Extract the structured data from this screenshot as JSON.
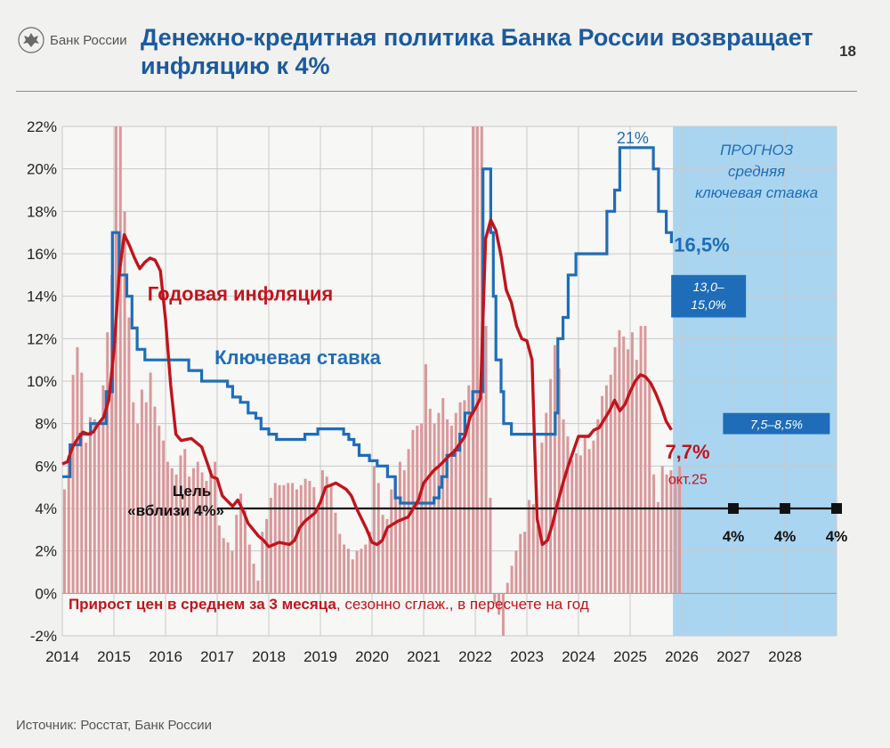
{
  "header": {
    "logo_text": "Банк России",
    "title": "Денежно-кредитная политика Банка России возвращает инфляцию к 4%",
    "page_number": "18"
  },
  "footer": {
    "source": "Источник: Росстат, Банк России"
  },
  "colors": {
    "inflation": "#c0141c",
    "key_rate": "#1f6db8",
    "bars": "#d9989a",
    "forecast_bg": "#a9d5f0",
    "forecast_box": "#1f6db8",
    "target": "#111111"
  },
  "chart_data": {
    "type": "line",
    "ylim": [
      -2,
      22
    ],
    "xlim": [
      2014,
      2029
    ],
    "y_ticks": [
      "-2%",
      "0%",
      "2%",
      "4%",
      "6%",
      "8%",
      "10%",
      "12%",
      "14%",
      "16%",
      "18%",
      "20%",
      "22%"
    ],
    "x_ticks": [
      "2014",
      "2015",
      "2016",
      "2017",
      "2018",
      "2019",
      "2020",
      "2021",
      "2022",
      "2023",
      "2024",
      "2025",
      "2026",
      "2027",
      "2028"
    ],
    "grid": true,
    "forecast": {
      "label_lines": [
        "ПРОГНОЗ",
        "средняя",
        "ключевая ставка"
      ],
      "start": 2025.83,
      "end": 2029,
      "ranges": [
        {
          "lines": [
            "13,0–",
            "15,0%"
          ],
          "low": 13.0,
          "high": 15.0,
          "year": 2026
        },
        {
          "lines": [
            "7,5–8,5%"
          ],
          "low": 7.5,
          "high": 8.5,
          "year": 2027
        }
      ]
    },
    "target": {
      "label_lines": [
        "Цель",
        "«вблизи 4%»"
      ],
      "value": 4,
      "points": [
        {
          "x": 2027,
          "label": "4%"
        },
        {
          "x": 2028,
          "label": "4%"
        },
        {
          "x": 2029,
          "label": "4%"
        }
      ]
    },
    "series": [
      {
        "name": "Годовая инфляция",
        "end_label": "7,7%",
        "end_sublabel": "окт.25",
        "points": [
          [
            2014.0,
            6.1
          ],
          [
            2014.1,
            6.2
          ],
          [
            2014.2,
            6.9
          ],
          [
            2014.3,
            7.3
          ],
          [
            2014.4,
            7.6
          ],
          [
            2014.5,
            7.5
          ],
          [
            2014.6,
            7.6
          ],
          [
            2014.7,
            8.0
          ],
          [
            2014.8,
            8.3
          ],
          [
            2014.9,
            9.1
          ],
          [
            2015.0,
            11.4
          ],
          [
            2015.1,
            15.0
          ],
          [
            2015.2,
            16.9
          ],
          [
            2015.3,
            16.4
          ],
          [
            2015.4,
            15.8
          ],
          [
            2015.5,
            15.3
          ],
          [
            2015.6,
            15.6
          ],
          [
            2015.7,
            15.8
          ],
          [
            2015.8,
            15.7
          ],
          [
            2015.9,
            15.2
          ],
          [
            2016.0,
            12.9
          ],
          [
            2016.1,
            9.8
          ],
          [
            2016.2,
            7.5
          ],
          [
            2016.3,
            7.2
          ],
          [
            2016.5,
            7.3
          ],
          [
            2016.7,
            6.9
          ],
          [
            2016.8,
            6.2
          ],
          [
            2016.9,
            5.5
          ],
          [
            2017.0,
            5.4
          ],
          [
            2017.1,
            4.6
          ],
          [
            2017.3,
            4.1
          ],
          [
            2017.4,
            4.4
          ],
          [
            2017.5,
            3.9
          ],
          [
            2017.6,
            3.3
          ],
          [
            2017.7,
            3.0
          ],
          [
            2017.8,
            2.7
          ],
          [
            2017.9,
            2.5
          ],
          [
            2018.0,
            2.2
          ],
          [
            2018.2,
            2.4
          ],
          [
            2018.4,
            2.3
          ],
          [
            2018.5,
            2.5
          ],
          [
            2018.6,
            3.1
          ],
          [
            2018.7,
            3.4
          ],
          [
            2018.9,
            3.8
          ],
          [
            2019.0,
            4.3
          ],
          [
            2019.1,
            5.0
          ],
          [
            2019.3,
            5.2
          ],
          [
            2019.5,
            4.9
          ],
          [
            2019.6,
            4.6
          ],
          [
            2019.7,
            4.0
          ],
          [
            2019.8,
            3.5
          ],
          [
            2019.9,
            3.0
          ],
          [
            2020.0,
            2.4
          ],
          [
            2020.1,
            2.3
          ],
          [
            2020.2,
            2.5
          ],
          [
            2020.3,
            3.1
          ],
          [
            2020.5,
            3.4
          ],
          [
            2020.7,
            3.6
          ],
          [
            2020.9,
            4.4
          ],
          [
            2021.0,
            5.2
          ],
          [
            2021.2,
            5.8
          ],
          [
            2021.3,
            6.0
          ],
          [
            2021.5,
            6.5
          ],
          [
            2021.6,
            6.7
          ],
          [
            2021.8,
            7.4
          ],
          [
            2021.9,
            8.3
          ],
          [
            2022.0,
            8.7
          ],
          [
            2022.1,
            9.2
          ],
          [
            2022.2,
            16.7
          ],
          [
            2022.3,
            17.6
          ],
          [
            2022.4,
            17.1
          ],
          [
            2022.5,
            15.9
          ],
          [
            2022.6,
            14.3
          ],
          [
            2022.7,
            13.7
          ],
          [
            2022.8,
            12.6
          ],
          [
            2022.9,
            12.0
          ],
          [
            2023.0,
            11.9
          ],
          [
            2023.1,
            11.0
          ],
          [
            2023.15,
            7.0
          ],
          [
            2023.2,
            3.5
          ],
          [
            2023.3,
            2.3
          ],
          [
            2023.4,
            2.5
          ],
          [
            2023.5,
            3.3
          ],
          [
            2023.6,
            4.3
          ],
          [
            2023.7,
            5.2
          ],
          [
            2023.8,
            6.0
          ],
          [
            2023.9,
            6.7
          ],
          [
            2024.0,
            7.4
          ],
          [
            2024.1,
            7.4
          ],
          [
            2024.2,
            7.4
          ],
          [
            2024.3,
            7.7
          ],
          [
            2024.4,
            7.8
          ],
          [
            2024.5,
            8.2
          ],
          [
            2024.6,
            8.6
          ],
          [
            2024.7,
            9.1
          ],
          [
            2024.8,
            8.6
          ],
          [
            2024.9,
            8.9
          ],
          [
            2025.0,
            9.5
          ],
          [
            2025.1,
            10.0
          ],
          [
            2025.2,
            10.3
          ],
          [
            2025.3,
            10.2
          ],
          [
            2025.4,
            9.9
          ],
          [
            2025.5,
            9.4
          ],
          [
            2025.6,
            8.8
          ],
          [
            2025.7,
            8.1
          ],
          [
            2025.8,
            7.7
          ]
        ]
      },
      {
        "name": "Ключевая ставка",
        "end_label": "16,5%",
        "label_top": "21%",
        "points": [
          [
            2014.0,
            5.5
          ],
          [
            2014.15,
            7.0
          ],
          [
            2014.35,
            7.5
          ],
          [
            2014.55,
            8.0
          ],
          [
            2014.85,
            9.5
          ],
          [
            2014.97,
            17.0
          ],
          [
            2015.1,
            15.0
          ],
          [
            2015.25,
            14.0
          ],
          [
            2015.35,
            12.5
          ],
          [
            2015.45,
            11.5
          ],
          [
            2015.6,
            11.0
          ],
          [
            2016.45,
            10.5
          ],
          [
            2016.7,
            10.0
          ],
          [
            2017.2,
            9.75
          ],
          [
            2017.3,
            9.25
          ],
          [
            2017.45,
            9.0
          ],
          [
            2017.6,
            8.5
          ],
          [
            2017.75,
            8.25
          ],
          [
            2017.85,
            7.75
          ],
          [
            2018.0,
            7.5
          ],
          [
            2018.15,
            7.25
          ],
          [
            2018.7,
            7.5
          ],
          [
            2018.95,
            7.75
          ],
          [
            2019.45,
            7.5
          ],
          [
            2019.55,
            7.25
          ],
          [
            2019.65,
            7.0
          ],
          [
            2019.75,
            6.5
          ],
          [
            2019.95,
            6.25
          ],
          [
            2020.1,
            6.0
          ],
          [
            2020.3,
            5.5
          ],
          [
            2020.45,
            4.5
          ],
          [
            2020.55,
            4.25
          ],
          [
            2021.2,
            4.5
          ],
          [
            2021.3,
            5.0
          ],
          [
            2021.35,
            5.5
          ],
          [
            2021.45,
            6.5
          ],
          [
            2021.6,
            6.75
          ],
          [
            2021.7,
            7.5
          ],
          [
            2021.8,
            8.5
          ],
          [
            2021.95,
            9.5
          ],
          [
            2022.15,
            20.0
          ],
          [
            2022.3,
            17.0
          ],
          [
            2022.35,
            14.0
          ],
          [
            2022.4,
            11.0
          ],
          [
            2022.5,
            9.5
          ],
          [
            2022.55,
            8.0
          ],
          [
            2022.7,
            7.5
          ],
          [
            2023.55,
            8.5
          ],
          [
            2023.6,
            12.0
          ],
          [
            2023.7,
            13.0
          ],
          [
            2023.8,
            15.0
          ],
          [
            2023.95,
            16.0
          ],
          [
            2024.55,
            18.0
          ],
          [
            2024.7,
            19.0
          ],
          [
            2024.8,
            21.0
          ],
          [
            2025.45,
            20.0
          ],
          [
            2025.55,
            18.0
          ],
          [
            2025.7,
            17.0
          ],
          [
            2025.8,
            16.5
          ]
        ]
      }
    ],
    "bars": {
      "name": "Прирост цен в среднем за 3 месяца",
      "caption_rest": ", сезонно сглаж., в пересчете на год",
      "values": [
        4.9,
        6.5,
        10.3,
        11.6,
        10.4,
        7.1,
        8.3,
        8.2,
        8.0,
        9.8,
        12.3,
        15.0,
        22.0,
        22.0,
        18.0,
        13.0,
        9.0,
        8.0,
        9.6,
        9.0,
        10.4,
        8.8,
        7.9,
        7.2,
        6.2,
        5.9,
        5.6,
        6.5,
        6.8,
        5.5,
        5.9,
        6.2,
        5.7,
        5.3,
        5.8,
        6.2,
        3.2,
        2.6,
        2.4,
        2.0,
        3.7,
        4.7,
        3.9,
        2.3,
        1.4,
        0.6,
        2.9,
        3.5,
        4.5,
        5.2,
        5.1,
        5.1,
        5.2,
        5.2,
        4.9,
        5.1,
        5.4,
        5.3,
        5.0,
        4.1,
        5.8,
        5.5,
        5.1,
        3.8,
        2.8,
        2.3,
        2.1,
        1.6,
        2.0,
        2.1,
        2.3,
        2.9,
        6.0,
        5.2,
        3.7,
        3.5,
        4.9,
        5.5,
        6.2,
        5.8,
        6.8,
        7.7,
        7.9,
        8.0,
        10.8,
        8.7,
        8.0,
        8.5,
        9.2,
        8.2,
        7.9,
        8.5,
        9.0,
        9.1,
        9.8,
        22.0,
        22.0,
        22.0,
        12.6,
        4.5,
        -0.5,
        -1.0,
        -2.0,
        0.5,
        1.3,
        2.0,
        2.8,
        2.9,
        4.4,
        4.2,
        3.2,
        7.1,
        8.5,
        10.1,
        11.7,
        10.6,
        8.2,
        7.4,
        6.3,
        6.6,
        6.5,
        7.4,
        6.8,
        7.2,
        8.2,
        9.3,
        9.8,
        10.3,
        11.6,
        12.4,
        12.1,
        11.5,
        12.3,
        11.0,
        12.6,
        12.6,
        9.9,
        5.6,
        4.3,
        6.0,
        5.6,
        5.8,
        5.5,
        6.0
      ]
    }
  }
}
